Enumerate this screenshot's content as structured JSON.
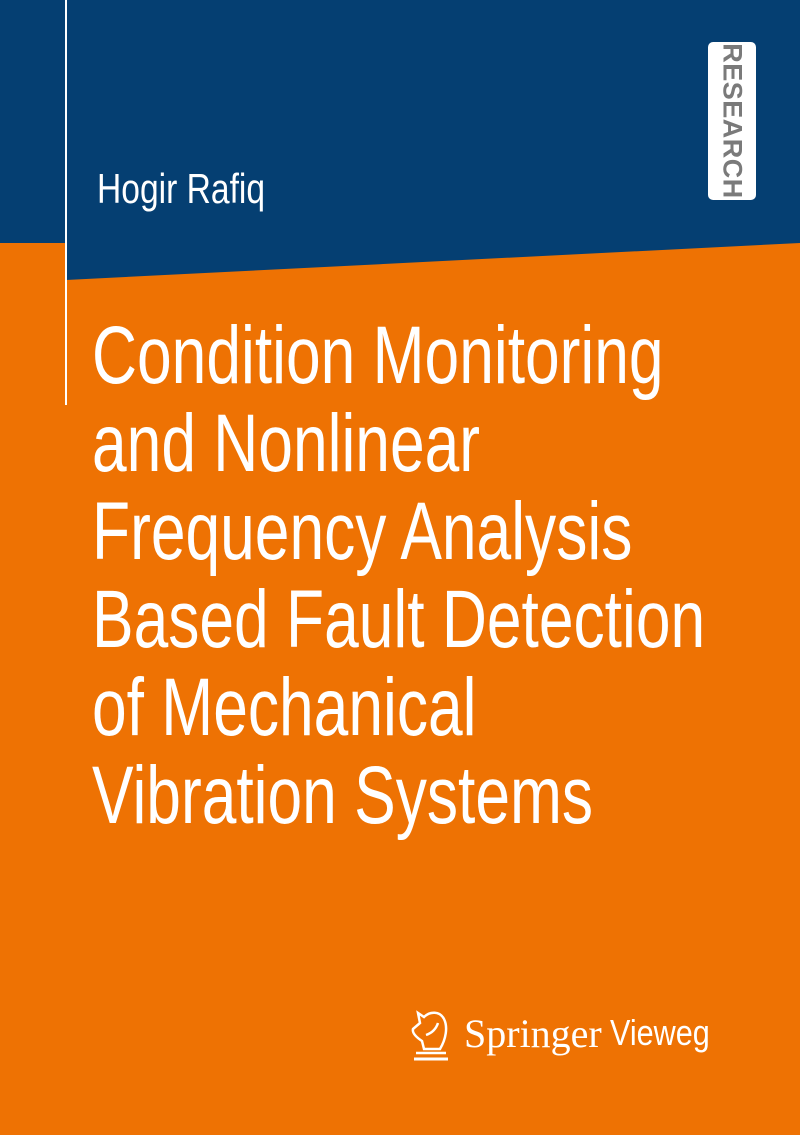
{
  "author": "Hogir Rafiq",
  "series_badge": "RESEARCH",
  "title_lines": [
    "Condition Monitoring",
    "and Nonlinear",
    "Frequency Analysis",
    "Based Fault Detection",
    "of Mechanical",
    "Vibration Systems"
  ],
  "publisher": {
    "name": "Springer",
    "imprint": "Vieweg",
    "logo_icon": "knight-horse-icon"
  },
  "colors": {
    "background": "#ee7203",
    "header": "#053f72",
    "text": "#ffffff"
  }
}
